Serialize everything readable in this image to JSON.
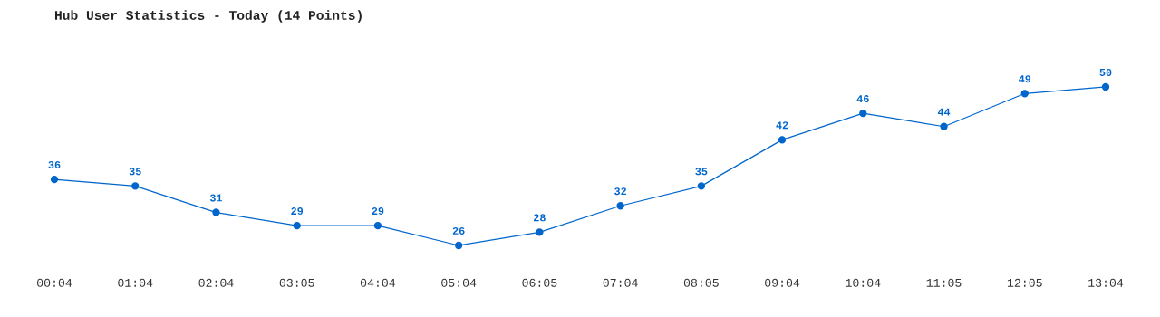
{
  "chart_data": {
    "type": "line",
    "title": "Hub User Statistics - Today (14 Points)",
    "categories": [
      "00:04",
      "01:04",
      "02:04",
      "03:05",
      "04:04",
      "05:04",
      "06:05",
      "07:04",
      "08:05",
      "09:04",
      "10:04",
      "11:05",
      "12:05",
      "13:04"
    ],
    "series": [
      {
        "color": "#0066cc",
        "values": [
          36,
          35,
          31,
          29,
          29,
          26,
          28,
          32,
          35,
          42,
          46,
          44,
          49,
          50
        ]
      }
    ],
    "data_labels": true,
    "marker": "circle",
    "line_style": "solid",
    "grid": false,
    "legend": false,
    "tick_labels": "x"
  }
}
